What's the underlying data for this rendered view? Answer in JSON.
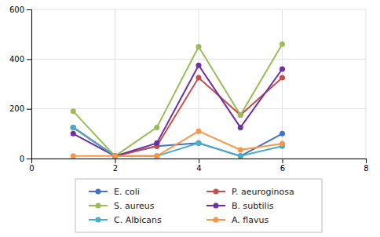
{
  "chart_data": {
    "type": "line",
    "x": [
      1,
      2,
      3,
      4,
      5,
      6
    ],
    "series": [
      {
        "name": "E. coli",
        "color": "#4472C4",
        "marker": "circle",
        "values": [
          125,
          10,
          50,
          62,
          10,
          100
        ]
      },
      {
        "name": "P. aeuroginosa",
        "color": "#C0504D",
        "marker": "circle",
        "values": [
          125,
          10,
          50,
          325,
          175,
          325
        ]
      },
      {
        "name": "S. aureus",
        "color": "#9BBB59",
        "marker": "circle",
        "values": [
          190,
          10,
          125,
          450,
          175,
          460
        ]
      },
      {
        "name": "B. subtilis",
        "color": "#7030A0",
        "marker": "circle",
        "values": [
          100,
          10,
          62,
          375,
          125,
          360
        ]
      },
      {
        "name": "C. Albicans",
        "color": "#4BACC6",
        "marker": "circle",
        "values": [
          125,
          10,
          10,
          62,
          10,
          50
        ]
      },
      {
        "name": "A. flavus",
        "color": "#F79646",
        "marker": "circle",
        "values": [
          10,
          10,
          10,
          110,
          35,
          60
        ]
      }
    ],
    "xlim": [
      0,
      8
    ],
    "xticks": [
      0,
      2,
      4,
      6,
      8
    ],
    "ylim": [
      0,
      600
    ],
    "yticks": [
      0,
      200,
      400,
      600
    ],
    "grid": true,
    "legend": "bottom"
  }
}
